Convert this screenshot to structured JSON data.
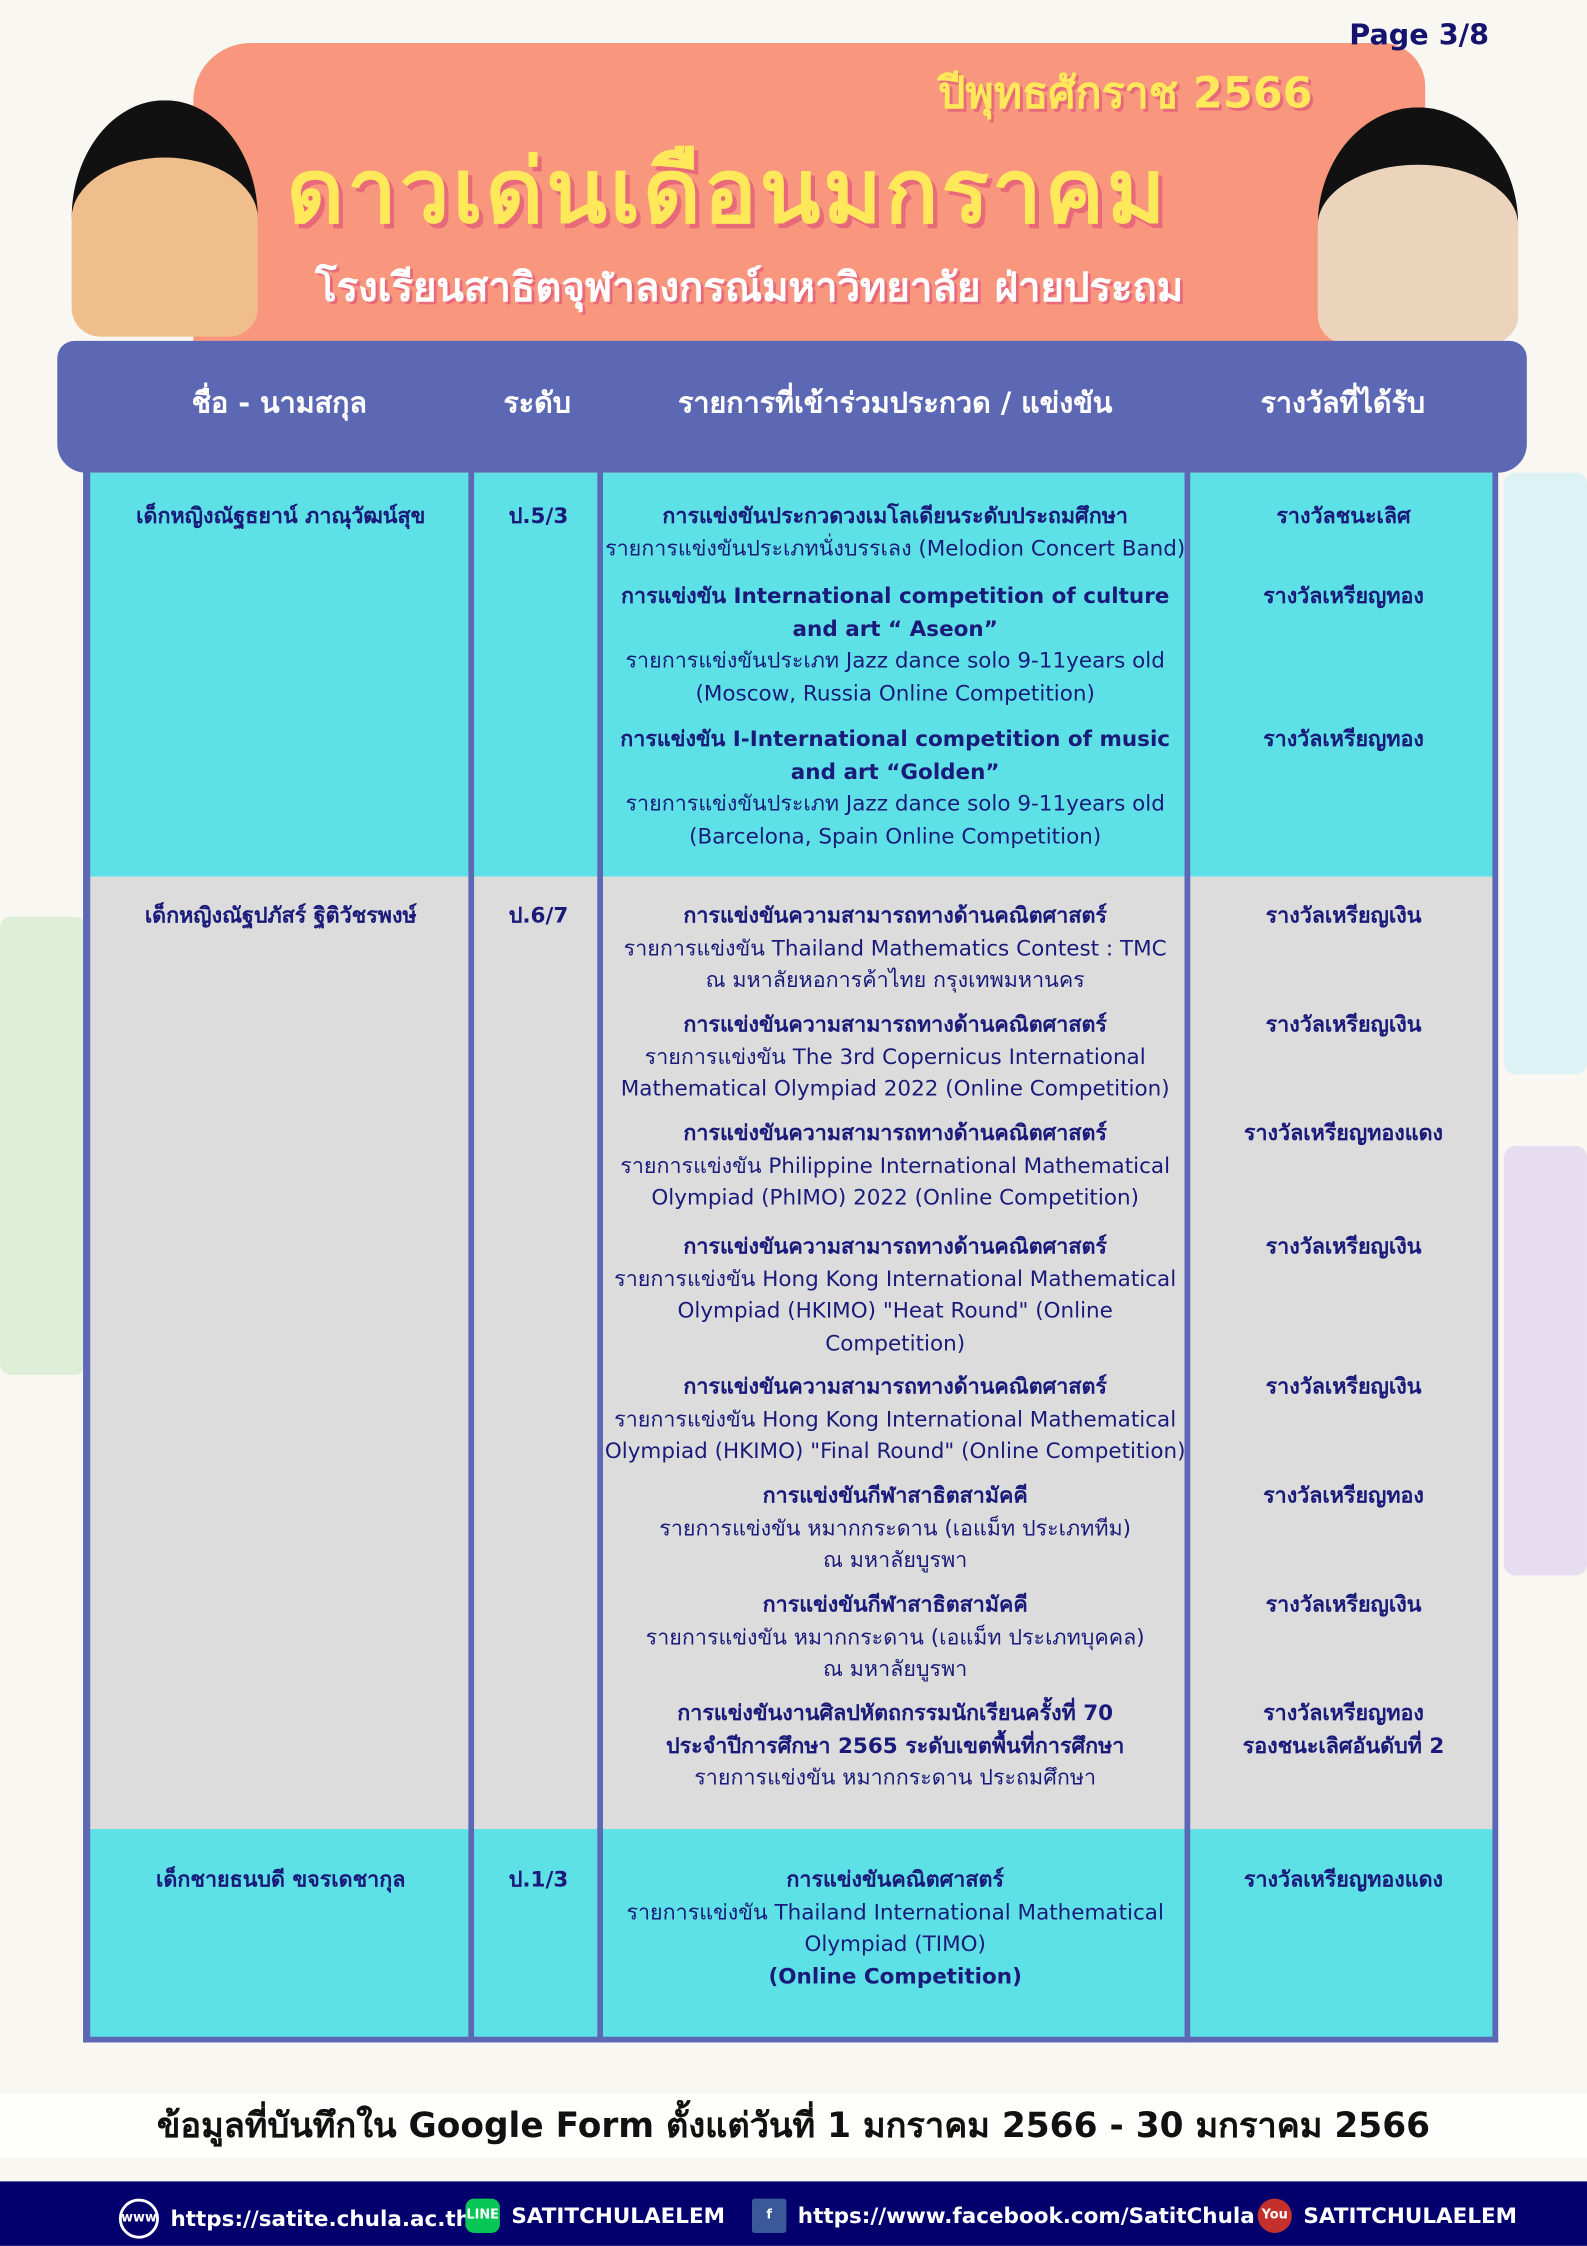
{
  "page_indicator": "Page 3/8",
  "banner": {
    "year": "ปีพุทธศักราช 2566",
    "title": "ดาวเด่นเดือนมกราคม",
    "school": "โรงเรียนสาธิตจุฬาลงกรณ์มหาวิทยาลัย ฝ่ายประถม"
  },
  "table": {
    "headers": [
      "ชื่อ - นามสกุล",
      "ระดับ",
      "รายการที่เข้าร่วมประกวด / แข่งขัน",
      "รางวัลที่ได้รับ"
    ],
    "row_colors": [
      "#5de1e6",
      "#dcdcdc",
      "#5de1e6"
    ],
    "rows": [
      {
        "name": "เด็กหญิงณัฐธยาน์ ภาณุวัฒน์สุข",
        "level": "ป.5/3",
        "entries": [
          {
            "lines": [
              {
                "t": "การแข่งขันประกวดวงเมโลเดียนระดับประถมศึกษา",
                "b": true
              },
              {
                "t": "รายการแข่งขันประเภทนั่งบรรเลง (Melodion Concert Band)",
                "b": false
              }
            ],
            "award": [
              "รางวัลชนะเลิศ"
            ]
          },
          {
            "lines": [
              {
                "t": "การแข่งขัน International competition of culture",
                "b": true
              },
              {
                "t": "and art “ Aseon”",
                "b": true
              },
              {
                "t": "รายการแข่งขันประเภท Jazz dance solo 9-11years old",
                "b": false
              },
              {
                "t": "(Moscow, Russia Online Competition)",
                "b": false
              }
            ],
            "award": [
              "รางวัลเหรียญทอง"
            ]
          },
          {
            "lines": [
              {
                "t": "การแข่งขัน I-International competition of music",
                "b": true
              },
              {
                "t": "and art “Golden”",
                "b": true
              },
              {
                "t": "รายการแข่งขันประเภท Jazz dance solo 9-11years old",
                "b": false
              },
              {
                "t": "(Barcelona, Spain Online Competition)",
                "b": false
              }
            ],
            "award": [
              "รางวัลเหรียญทอง"
            ]
          }
        ]
      },
      {
        "name": "เด็กหญิงณัฐปภัสร์ ฐิติวัชรพงษ์",
        "level": "ป.6/7",
        "entries": [
          {
            "lines": [
              {
                "t": "การแข่งขันความสามารถทางด้านคณิตศาสตร์",
                "b": true
              },
              {
                "t": "รายการแข่งขัน Thailand Mathematics Contest : TMC",
                "b": false
              },
              {
                "t": "ณ มหาลัยหอการค้าไทย กรุงเทพมหานคร",
                "b": false
              }
            ],
            "award": [
              "รางวัลเหรียญเงิน"
            ]
          },
          {
            "lines": [
              {
                "t": "การแข่งขันความสามารถทางด้านคณิตศาสตร์",
                "b": true
              },
              {
                "t": "รายการแข่งขัน The 3rd Copernicus International",
                "b": false
              },
              {
                "t": "Mathematical Olympiad 2022 (Online Competition)",
                "b": false
              }
            ],
            "award": [
              "รางวัลเหรียญเงิน"
            ]
          },
          {
            "lines": [
              {
                "t": "การแข่งขันความสามารถทางด้านคณิตศาสตร์",
                "b": true
              },
              {
                "t": "รายการแข่งขัน Philippine International Mathematical",
                "b": false
              },
              {
                "t": "Olympiad (PhIMO) 2022 (Online Competition)",
                "b": false
              }
            ],
            "award": [
              "รางวัลเหรียญทองแดง"
            ]
          },
          {
            "lines": [
              {
                "t": "การแข่งขันความสามารถทางด้านคณิตศาสตร์",
                "b": true
              },
              {
                "t": "รายการแข่งขัน Hong Kong International Mathematical",
                "b": false
              },
              {
                "t": "Olympiad (HKIMO) \"Heat Round\" (Online Competition)",
                "b": false
              }
            ],
            "award": [
              "รางวัลเหรียญเงิน"
            ]
          },
          {
            "lines": [
              {
                "t": "การแข่งขันความสามารถทางด้านคณิตศาสตร์",
                "b": true
              },
              {
                "t": "รายการแข่งขัน Hong Kong International Mathematical",
                "b": false
              },
              {
                "t": "Olympiad (HKIMO) \"Final Round\" (Online Competition)",
                "b": false
              }
            ],
            "award": [
              "รางวัลเหรียญเงิน"
            ]
          },
          {
            "lines": [
              {
                "t": "การแข่งขันกีฬาสาธิตสามัคคี",
                "b": true
              },
              {
                "t": "รายการแข่งขัน หมากกระดาน (เอแม็ท ประเภททีม)",
                "b": false
              },
              {
                "t": "ณ มหาลัยบูรพา",
                "b": false
              }
            ],
            "award": [
              "รางวัลเหรียญทอง"
            ]
          },
          {
            "lines": [
              {
                "t": "การแข่งขันกีฬาสาธิตสามัคคี",
                "b": true
              },
              {
                "t": "รายการแข่งขัน หมากกระดาน (เอแม็ท ประเภทบุคคล)",
                "b": false
              },
              {
                "t": "ณ มหาลัยบูรพา",
                "b": false
              }
            ],
            "award": [
              "รางวัลเหรียญเงิน"
            ]
          },
          {
            "lines": [
              {
                "t": "การแข่งขันงานศิลปหัตถกรรมนักเรียนครั้งที่ 70",
                "b": true
              },
              {
                "t": "ประจำปีการศึกษา 2565 ระดับเขตพื้นที่การศึกษา",
                "b": true
              },
              {
                "t": "รายการแข่งขัน หมากกระดาน ประถมศึกษา",
                "b": false
              }
            ],
            "award": [
              "รางวัลเหรียญทอง",
              "รองชนะเลิศอันดับที่ 2"
            ]
          }
        ]
      },
      {
        "name": "เด็กชายธนบดี ขจรเดชากุล",
        "level": "ป.1/3",
        "entries": [
          {
            "lines": [
              {
                "t": "การแข่งขันคณิตศาสตร์",
                "b": true
              },
              {
                "t": "รายการแข่งขัน Thailand International Mathematical",
                "b": false
              },
              {
                "t": "Olympiad  (TIMO)",
                "b": false
              },
              {
                "t": "(Online Competition)",
                "b": true
              }
            ],
            "award": [
              "รางวัลเหรียญทองแดง"
            ]
          }
        ]
      }
    ]
  },
  "note": "ข้อมูลที่บันทึกใน Google Form ตั้งแต่วันที่ 1 มกราคม 2566 - 30 มกราคม 2566",
  "footer": [
    {
      "icon": "globe-www-icon",
      "label": "https://satite.chula.ac.th",
      "color": "#03006e"
    },
    {
      "icon": "line-icon",
      "label": "SATITCHULAELEM",
      "color": "#06c755"
    },
    {
      "icon": "facebook-icon",
      "label": "https://www.facebook.com/SatitChula",
      "color": "#3b5998"
    },
    {
      "icon": "youtube-icon",
      "label": "SATITCHULAELEM",
      "color": "#c4302b"
    }
  ],
  "colors": {
    "header": "#5d68b4",
    "banner": "#f9977e",
    "title": "#ffe85a",
    "footer": "#03006e",
    "text": "#1a1a7a"
  }
}
